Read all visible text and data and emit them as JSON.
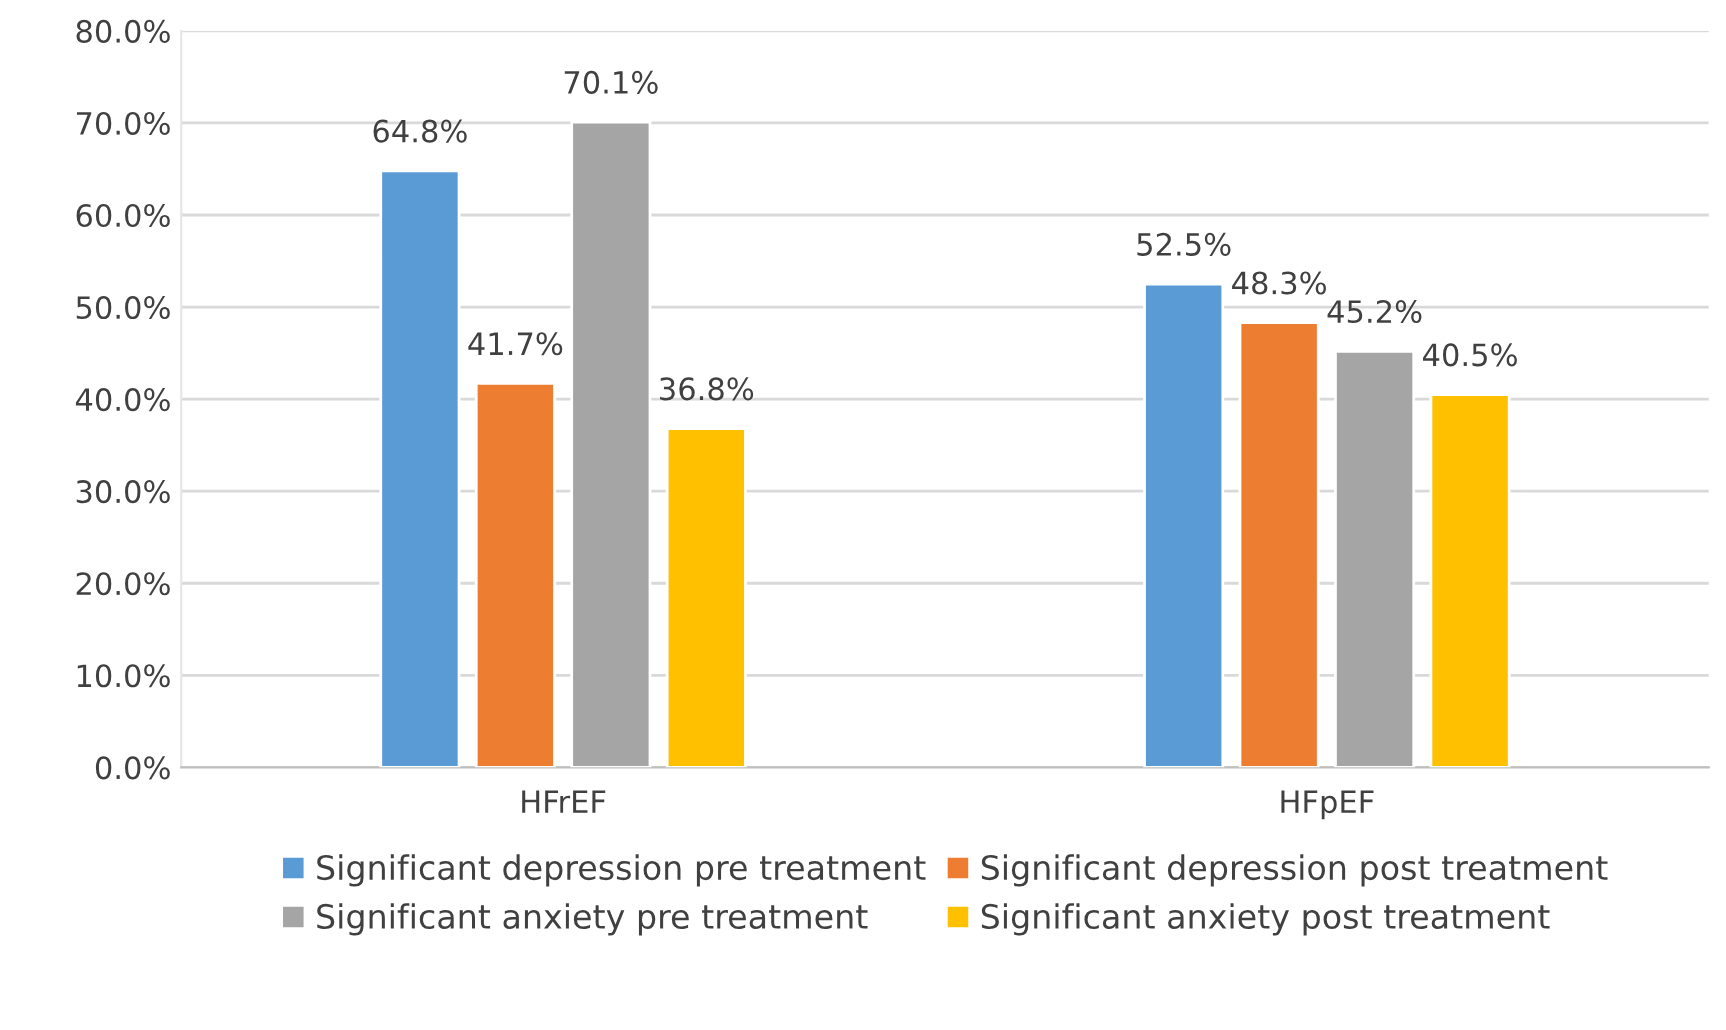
{
  "chart_data": {
    "type": "bar",
    "categories": [
      "HFrEF",
      "HFpEF"
    ],
    "series": [
      {
        "name": "Significant depression pre treatment",
        "color": "#5b9bd5",
        "values": [
          64.8,
          52.5
        ],
        "value_labels": [
          "64.8%",
          "52.5%"
        ]
      },
      {
        "name": "Significant depression post treatment",
        "color": "#ed7d31",
        "values": [
          41.7,
          48.3
        ],
        "value_labels": [
          "41.7%",
          "48.3%"
        ]
      },
      {
        "name": "Significant anxiety pre treatment",
        "color": "#a5a5a5",
        "values": [
          70.1,
          45.2
        ],
        "value_labels": [
          "70.1%",
          "45.2%"
        ]
      },
      {
        "name": "Significant anxiety post treatment",
        "color": "#ffc000",
        "values": [
          36.8,
          40.5
        ],
        "value_labels": [
          "36.8%",
          "40.5%"
        ]
      }
    ],
    "ylim": [
      0,
      80
    ],
    "yticks": [
      {
        "value": 0,
        "label": "0.0%"
      },
      {
        "value": 10,
        "label": "10.0%"
      },
      {
        "value": 20,
        "label": "20.0%"
      },
      {
        "value": 30,
        "label": "30.0%"
      },
      {
        "value": 40,
        "label": "40.0%"
      },
      {
        "value": 50,
        "label": "50.0%"
      },
      {
        "value": 60,
        "label": "60.0%"
      },
      {
        "value": 70,
        "label": "70.0%"
      },
      {
        "value": 80,
        "label": "80.0%"
      }
    ],
    "grid": "y",
    "legend": "bottom"
  }
}
